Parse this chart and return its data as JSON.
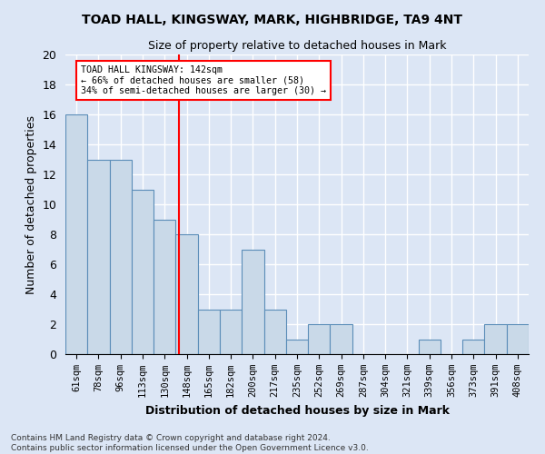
{
  "title1": "TOAD HALL, KINGSWAY, MARK, HIGHBRIDGE, TA9 4NT",
  "title2": "Size of property relative to detached houses in Mark",
  "xlabel": "Distribution of detached houses by size in Mark",
  "ylabel": "Number of detached properties",
  "categories": [
    "61sqm",
    "78sqm",
    "96sqm",
    "113sqm",
    "130sqm",
    "148sqm",
    "165sqm",
    "182sqm",
    "200sqm",
    "217sqm",
    "235sqm",
    "252sqm",
    "269sqm",
    "287sqm",
    "304sqm",
    "321sqm",
    "339sqm",
    "356sqm",
    "373sqm",
    "391sqm",
    "408sqm"
  ],
  "values": [
    16,
    13,
    13,
    11,
    9,
    8,
    3,
    3,
    7,
    3,
    1,
    2,
    2,
    0,
    0,
    0,
    1,
    0,
    1,
    2,
    2
  ],
  "bar_color": "#c9d9e8",
  "bar_edge_color": "#5b8db8",
  "ref_line_color": "red",
  "annotation_title": "TOAD HALL KINGSWAY: 142sqm",
  "annotation_line1": "← 66% of detached houses are smaller (58)",
  "annotation_line2": "34% of semi-detached houses are larger (30) →",
  "ylim": [
    0,
    20
  ],
  "yticks": [
    0,
    2,
    4,
    6,
    8,
    10,
    12,
    14,
    16,
    18,
    20
  ],
  "footer1": "Contains HM Land Registry data © Crown copyright and database right 2024.",
  "footer2": "Contains public sector information licensed under the Open Government Licence v3.0.",
  "bg_color": "#dce6f5",
  "plot_bg_color": "#dce6f5",
  "grid_color": "#ffffff"
}
